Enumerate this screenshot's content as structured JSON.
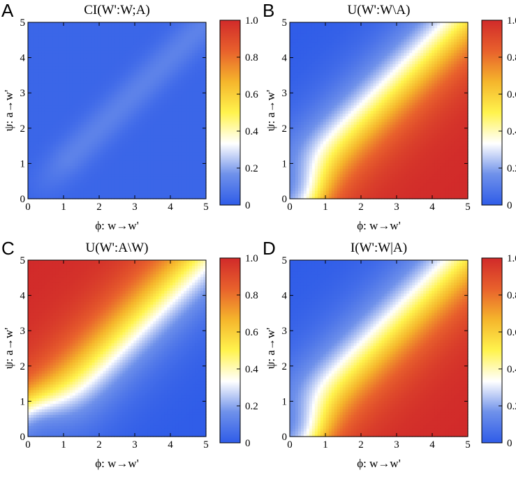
{
  "colorscale": {
    "stops": [
      "#2f5ce8",
      "#6f91ea",
      "#ffffff",
      "#fff34d",
      "#f5b52c",
      "#e8612c",
      "#d12a2a"
    ],
    "ticks": [
      "0",
      "0.2",
      "0.4",
      "0.6",
      "0.8",
      "1.0"
    ]
  },
  "chart_data": [
    {
      "type": "heatmap",
      "panel": "A",
      "title": "CI(W':W;A)",
      "xlabel": "ϕ: w→w'",
      "ylabel": "ψ: a→w'",
      "xlim": [
        0,
        5
      ],
      "ylim": [
        0,
        5
      ],
      "xticks": [
        "0",
        "1",
        "2",
        "3",
        "4",
        "5"
      ],
      "yticks": [
        "0",
        "1",
        "2",
        "3",
        "4",
        "5"
      ],
      "clim": [
        0,
        1
      ],
      "function": "ci",
      "description_values": {
        "background": 0.03,
        "diagonal_max": 0.12
      }
    },
    {
      "type": "heatmap",
      "panel": "B",
      "title": "U(W':W\\A)",
      "xlabel": "ϕ: w→w'",
      "ylabel": "ψ: a→w'",
      "xlim": [
        0,
        5
      ],
      "ylim": [
        0,
        5
      ],
      "xticks": [
        "0",
        "1",
        "2",
        "3",
        "4",
        "5"
      ],
      "yticks": [
        "0",
        "1",
        "2",
        "3",
        "4",
        "5"
      ],
      "clim": [
        0,
        1
      ],
      "function": "uw"
    },
    {
      "type": "heatmap",
      "panel": "C",
      "title": "U(W':A\\W)",
      "xlabel": "ϕ: w→w'",
      "ylabel": "ψ: a→w'",
      "xlim": [
        0,
        5
      ],
      "ylim": [
        0,
        5
      ],
      "xticks": [
        "0",
        "1",
        "2",
        "3",
        "4",
        "5"
      ],
      "yticks": [
        "0",
        "1",
        "2",
        "3",
        "4",
        "5"
      ],
      "clim": [
        0,
        1
      ],
      "function": "ua"
    },
    {
      "type": "heatmap",
      "panel": "D",
      "title": "I(W':W|A)",
      "xlabel": "ϕ: w→w'",
      "ylabel": "ψ: a→w'",
      "xlim": [
        0,
        5
      ],
      "ylim": [
        0,
        5
      ],
      "xticks": [
        "0",
        "1",
        "2",
        "3",
        "4",
        "5"
      ],
      "yticks": [
        "0",
        "1",
        "2",
        "3",
        "4",
        "5"
      ],
      "clim": [
        0,
        1
      ],
      "function": "iw"
    }
  ]
}
